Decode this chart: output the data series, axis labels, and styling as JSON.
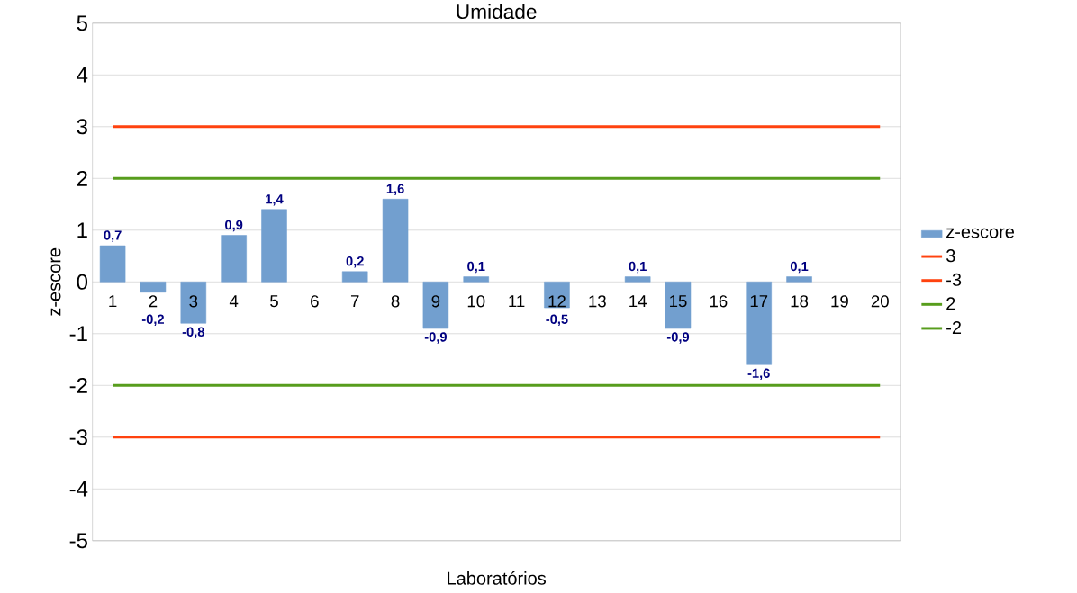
{
  "chart_data": {
    "type": "bar",
    "title": "Umidade",
    "xlabel": "Laboratórios",
    "ylabel": "z-escore",
    "categories": [
      "1",
      "2",
      "3",
      "4",
      "5",
      "6",
      "7",
      "8",
      "9",
      "10",
      "11",
      "12",
      "13",
      "14",
      "15",
      "16",
      "17",
      "18",
      "19",
      "20"
    ],
    "series": [
      {
        "name": "z-escore",
        "color": "#729fcf",
        "values": [
          0.7,
          -0.2,
          -0.8,
          0.9,
          1.4,
          null,
          0.2,
          1.6,
          -0.9,
          0.1,
          null,
          -0.5,
          null,
          0.1,
          -0.9,
          null,
          -1.6,
          0.1,
          null,
          null
        ],
        "value_labels": [
          "0,7",
          "-0,2",
          "-0,8",
          "0,9",
          "1,4",
          null,
          "0,2",
          "1,6",
          "-0,9",
          "0,1",
          null,
          "-0,5",
          null,
          "0,1",
          "-0,9",
          null,
          "-1,6",
          "0,1",
          null,
          null
        ]
      },
      {
        "name": "3",
        "type": "line",
        "color": "#ff420e",
        "values": [
          3,
          3,
          3,
          3,
          3,
          3,
          3,
          3,
          3,
          3,
          3,
          3,
          3,
          3,
          3,
          3,
          3,
          3,
          3,
          3
        ]
      },
      {
        "name": "-3",
        "type": "line",
        "color": "#ff420e",
        "values": [
          -3,
          -3,
          -3,
          -3,
          -3,
          -3,
          -3,
          -3,
          -3,
          -3,
          -3,
          -3,
          -3,
          -3,
          -3,
          -3,
          -3,
          -3,
          -3,
          -3
        ]
      },
      {
        "name": "2",
        "type": "line",
        "color": "#579d1c",
        "values": [
          2,
          2,
          2,
          2,
          2,
          2,
          2,
          2,
          2,
          2,
          2,
          2,
          2,
          2,
          2,
          2,
          2,
          2,
          2,
          2
        ]
      },
      {
        "name": "-2",
        "type": "line",
        "color": "#579d1c",
        "values": [
          -2,
          -2,
          -2,
          -2,
          -2,
          -2,
          -2,
          -2,
          -2,
          -2,
          -2,
          -2,
          -2,
          -2,
          -2,
          -2,
          -2,
          -2,
          -2,
          -2
        ]
      }
    ],
    "ylim": [
      -5,
      5
    ],
    "yticks": [
      -5,
      -4,
      -3,
      -2,
      -1,
      0,
      1,
      2,
      3,
      4,
      5
    ],
    "grid": "y",
    "legend": "right"
  }
}
